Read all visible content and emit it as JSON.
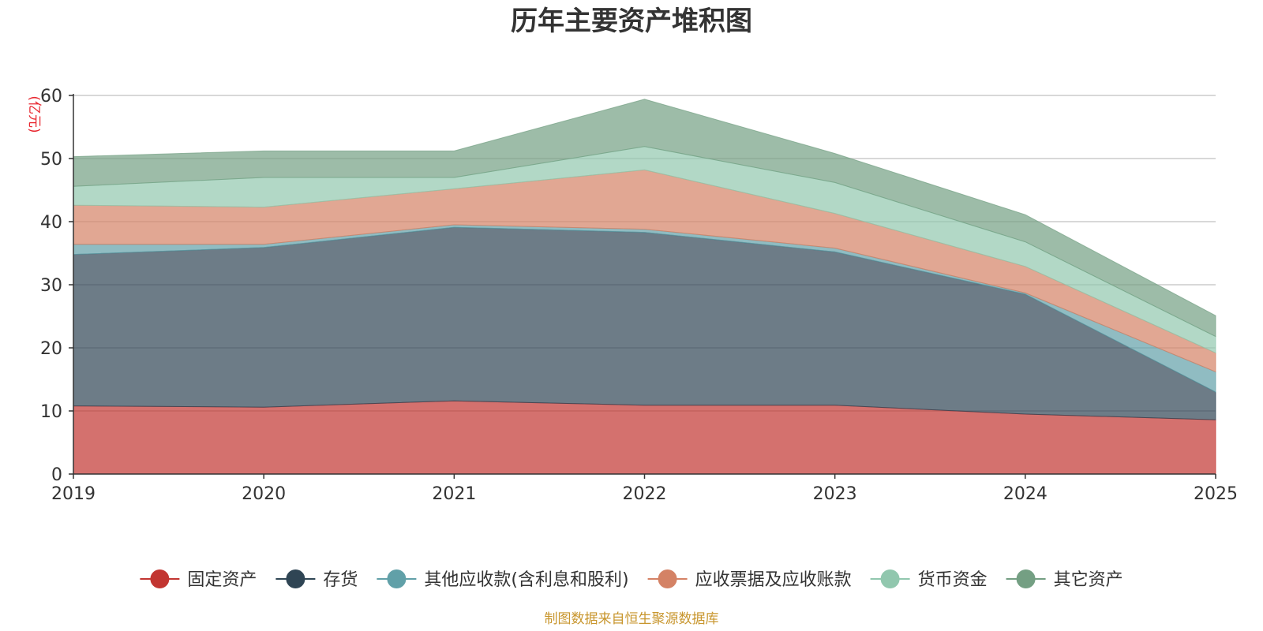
{
  "chart_data": {
    "type": "area",
    "stacked": true,
    "title": "历年主要资产堆积图",
    "ylabel": "(亿元)",
    "source_note": "制图数据来自恒生聚源数据库",
    "x": [
      "2019",
      "2020",
      "2021",
      "2022",
      "2023",
      "2024",
      "2025"
    ],
    "ylim": [
      0,
      60
    ],
    "yticks": [
      0,
      10,
      20,
      30,
      40,
      50,
      60
    ],
    "grid": true,
    "legend_position": "bottom",
    "series": [
      {
        "name": "固定资产",
        "color": "#c23531",
        "values": [
          10.8,
          10.6,
          11.6,
          10.9,
          10.9,
          9.5,
          8.6
        ]
      },
      {
        "name": "存货",
        "color": "#2f4554",
        "values": [
          24.0,
          25.3,
          27.5,
          27.4,
          24.3,
          19.0,
          4.4
        ]
      },
      {
        "name": "其他应收款(含利息和股利)",
        "color": "#61a0a8",
        "values": [
          1.6,
          0.5,
          0.4,
          0.5,
          0.6,
          0.2,
          3.2
        ]
      },
      {
        "name": "应收票据及应收账款",
        "color": "#d48265",
        "values": [
          6.2,
          5.9,
          5.7,
          9.4,
          5.5,
          4.2,
          3.0
        ]
      },
      {
        "name": "货币资金",
        "color": "#91c7ae",
        "values": [
          3.0,
          4.7,
          1.8,
          3.7,
          4.9,
          3.9,
          2.6
        ]
      },
      {
        "name": "其它资产",
        "color": "#749f83",
        "values": [
          4.7,
          4.2,
          4.2,
          7.5,
          4.6,
          4.3,
          3.3
        ]
      }
    ]
  }
}
